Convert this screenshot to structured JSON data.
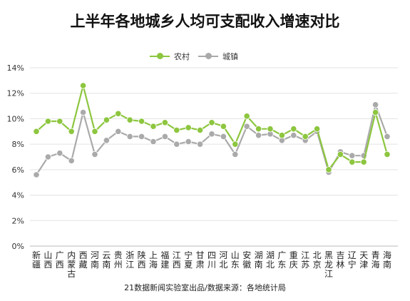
{
  "title": "上半年各地城乡人均可支配收入增速对比",
  "source": "21数据新闻实验室出品/数据来源：各地统计局",
  "chart_data": {
    "type": "line",
    "categories": [
      "新疆",
      "山西",
      "广西",
      "内蒙古",
      "西藏",
      "河南",
      "云南",
      "贵州",
      "浙江",
      "陕西",
      "上海",
      "福建",
      "江西",
      "宁夏",
      "甘肃",
      "四川",
      "河北",
      "山东",
      "安徽",
      "湖南",
      "湖北",
      "广东",
      "重庆",
      "江苏",
      "北京",
      "黑龙江",
      "吉林",
      "辽宁",
      "天津",
      "青海",
      "海南"
    ],
    "series": [
      {
        "name": "农村",
        "color": "#8dc63f",
        "values": [
          9.0,
          9.8,
          9.8,
          9.0,
          12.6,
          9.0,
          9.9,
          10.4,
          9.9,
          9.8,
          9.4,
          9.7,
          9.1,
          9.3,
          9.1,
          9.7,
          9.4,
          8.0,
          10.2,
          9.2,
          9.2,
          8.7,
          9.2,
          8.6,
          9.2,
          6.0,
          7.2,
          6.6,
          6.6,
          10.5,
          7.2
        ]
      },
      {
        "name": "城镇",
        "color": "#aaaaaa",
        "values": [
          5.6,
          7.0,
          7.3,
          6.7,
          10.5,
          7.2,
          8.3,
          9.0,
          8.6,
          8.6,
          8.2,
          8.6,
          8.0,
          8.2,
          8.0,
          8.8,
          8.6,
          7.2,
          9.4,
          8.7,
          8.8,
          8.3,
          8.7,
          8.3,
          9.0,
          5.8,
          7.4,
          7.1,
          7.1,
          11.1,
          8.6
        ]
      }
    ],
    "y_ticks": [
      "0%",
      "2%",
      "4%",
      "6%",
      "8%",
      "10%",
      "12%",
      "14%"
    ],
    "ylim": [
      0,
      14
    ],
    "grid": true,
    "legend": "top-center"
  }
}
